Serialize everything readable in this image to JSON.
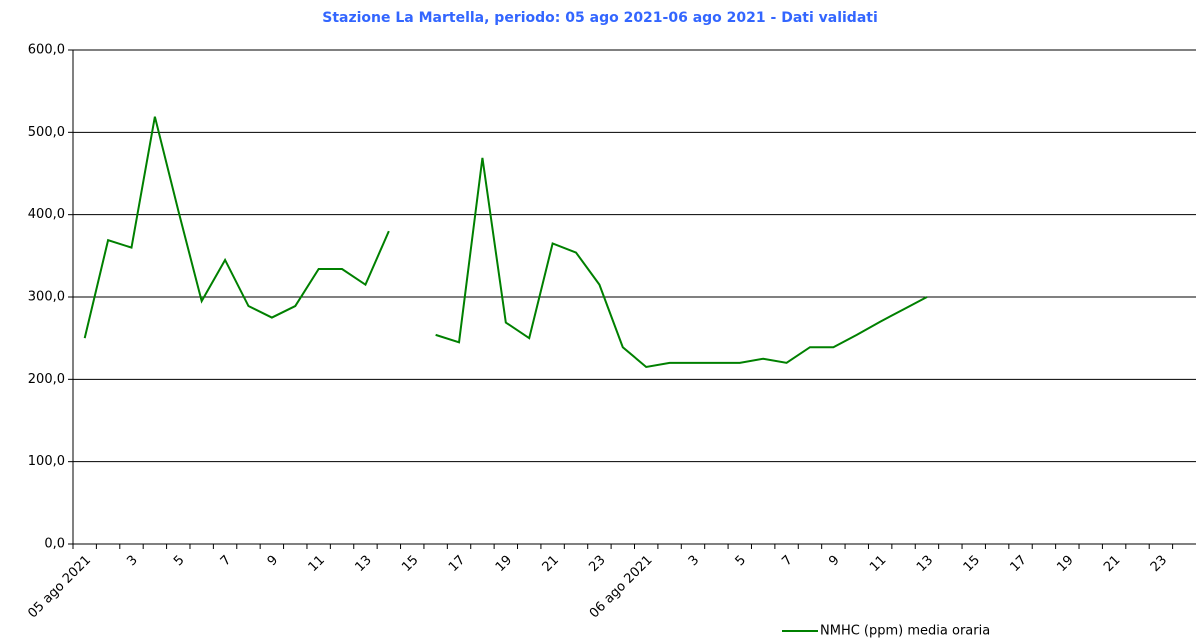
{
  "chart_data": {
    "type": "line",
    "title": "Stazione La Martella, periodo: 05 ago 2021-06 ago 2021 - Dati validati",
    "categories": [
      "05 ago 2021",
      null,
      "3",
      null,
      "5",
      null,
      "7",
      null,
      "9",
      null,
      "11",
      null,
      "13",
      null,
      "15",
      null,
      "17",
      null,
      "19",
      null,
      "21",
      null,
      "23",
      null,
      "06 ago 2021",
      null,
      "3",
      null,
      "5",
      null,
      "7",
      null,
      "9",
      null,
      "11",
      null,
      "13",
      null,
      "15",
      null,
      "17",
      null,
      "19",
      null,
      "21",
      null,
      "23",
      null
    ],
    "series": [
      {
        "name": "NMHC (ppm) media oraria",
        "color": "#008000",
        "values": [
          250,
          369,
          360,
          519,
          405,
          295,
          345,
          289,
          275,
          289,
          334,
          334,
          315,
          380,
          null,
          254,
          245,
          469,
          269,
          250,
          365,
          354,
          315,
          239,
          215,
          220,
          220,
          220,
          220,
          225,
          220,
          239,
          239,
          254,
          270,
          285,
          300,
          null,
          null,
          null,
          null,
          null,
          null,
          null,
          null,
          null,
          null,
          null
        ]
      }
    ],
    "ylim": [
      0,
      600
    ],
    "yticks": [
      {
        "value": 0,
        "label": "0,0"
      },
      {
        "value": 100,
        "label": "100,0"
      },
      {
        "value": 200,
        "label": "200,0"
      },
      {
        "value": 300,
        "label": "300,0"
      },
      {
        "value": 400,
        "label": "400,0"
      },
      {
        "value": 500,
        "label": "500,0"
      },
      {
        "value": 600,
        "label": "600,0"
      }
    ],
    "grid": true
  }
}
